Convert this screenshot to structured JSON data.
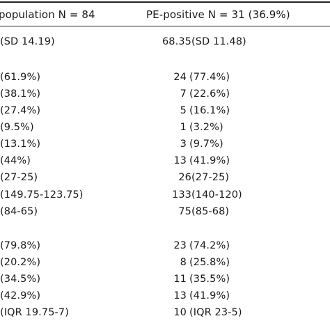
{
  "header": {
    "col1": "population N = 84",
    "col2": "PE-positive N = 31 (36.9%)"
  },
  "rows": [
    {
      "left": "(SD 14.19)",
      "right_num": "68.35",
      "right_rest": "(SD 11.48)",
      "compact": true
    },
    {
      "left": "(61.9%)",
      "right_num": "24",
      "right_rest": "(77.4%)",
      "compact": false
    },
    {
      "left": "(38.1%)",
      "right_num": "7",
      "right_rest": "(22.6%)",
      "compact": false
    },
    {
      "left": "(27.4%)",
      "right_num": "5",
      "right_rest": "(16.1%)",
      "compact": false
    },
    {
      "left": "(9.5%)",
      "right_num": "1",
      "right_rest": "(3.2%)",
      "compact": false
    },
    {
      "left": "(13.1%)",
      "right_num": "3",
      "right_rest": "(9.7%)",
      "compact": false
    },
    {
      "left": "(44%)",
      "right_num": "13",
      "right_rest": "(41.9%)",
      "compact": false
    },
    {
      "left": "(27-25)",
      "right_num": "26",
      "right_rest": "(27-25)",
      "compact": true
    },
    {
      "left": "(149.75-123.75)",
      "right_num": "133",
      "right_rest": "(140-120)",
      "compact": true
    },
    {
      "left": "(84-65)",
      "right_num": "75",
      "right_rest": "(85-68)",
      "compact": true
    },
    {
      "left": "(79.8%)",
      "right_num": "23",
      "right_rest": "(74.2%)",
      "compact": false
    },
    {
      "left": "(20.2%)",
      "right_num": "8",
      "right_rest": "(25.8%)",
      "compact": false
    },
    {
      "left": "(34.5%)",
      "right_num": "11",
      "right_rest": "(35.5%)",
      "compact": false
    },
    {
      "left": "(42.9%)",
      "right_num": "13",
      "right_rest": "(41.9%)",
      "compact": false
    },
    {
      "left": "(IQR 19.75-7)",
      "right_num": "10",
      "right_rest": "(IQR 23-5)",
      "compact": false
    }
  ]
}
